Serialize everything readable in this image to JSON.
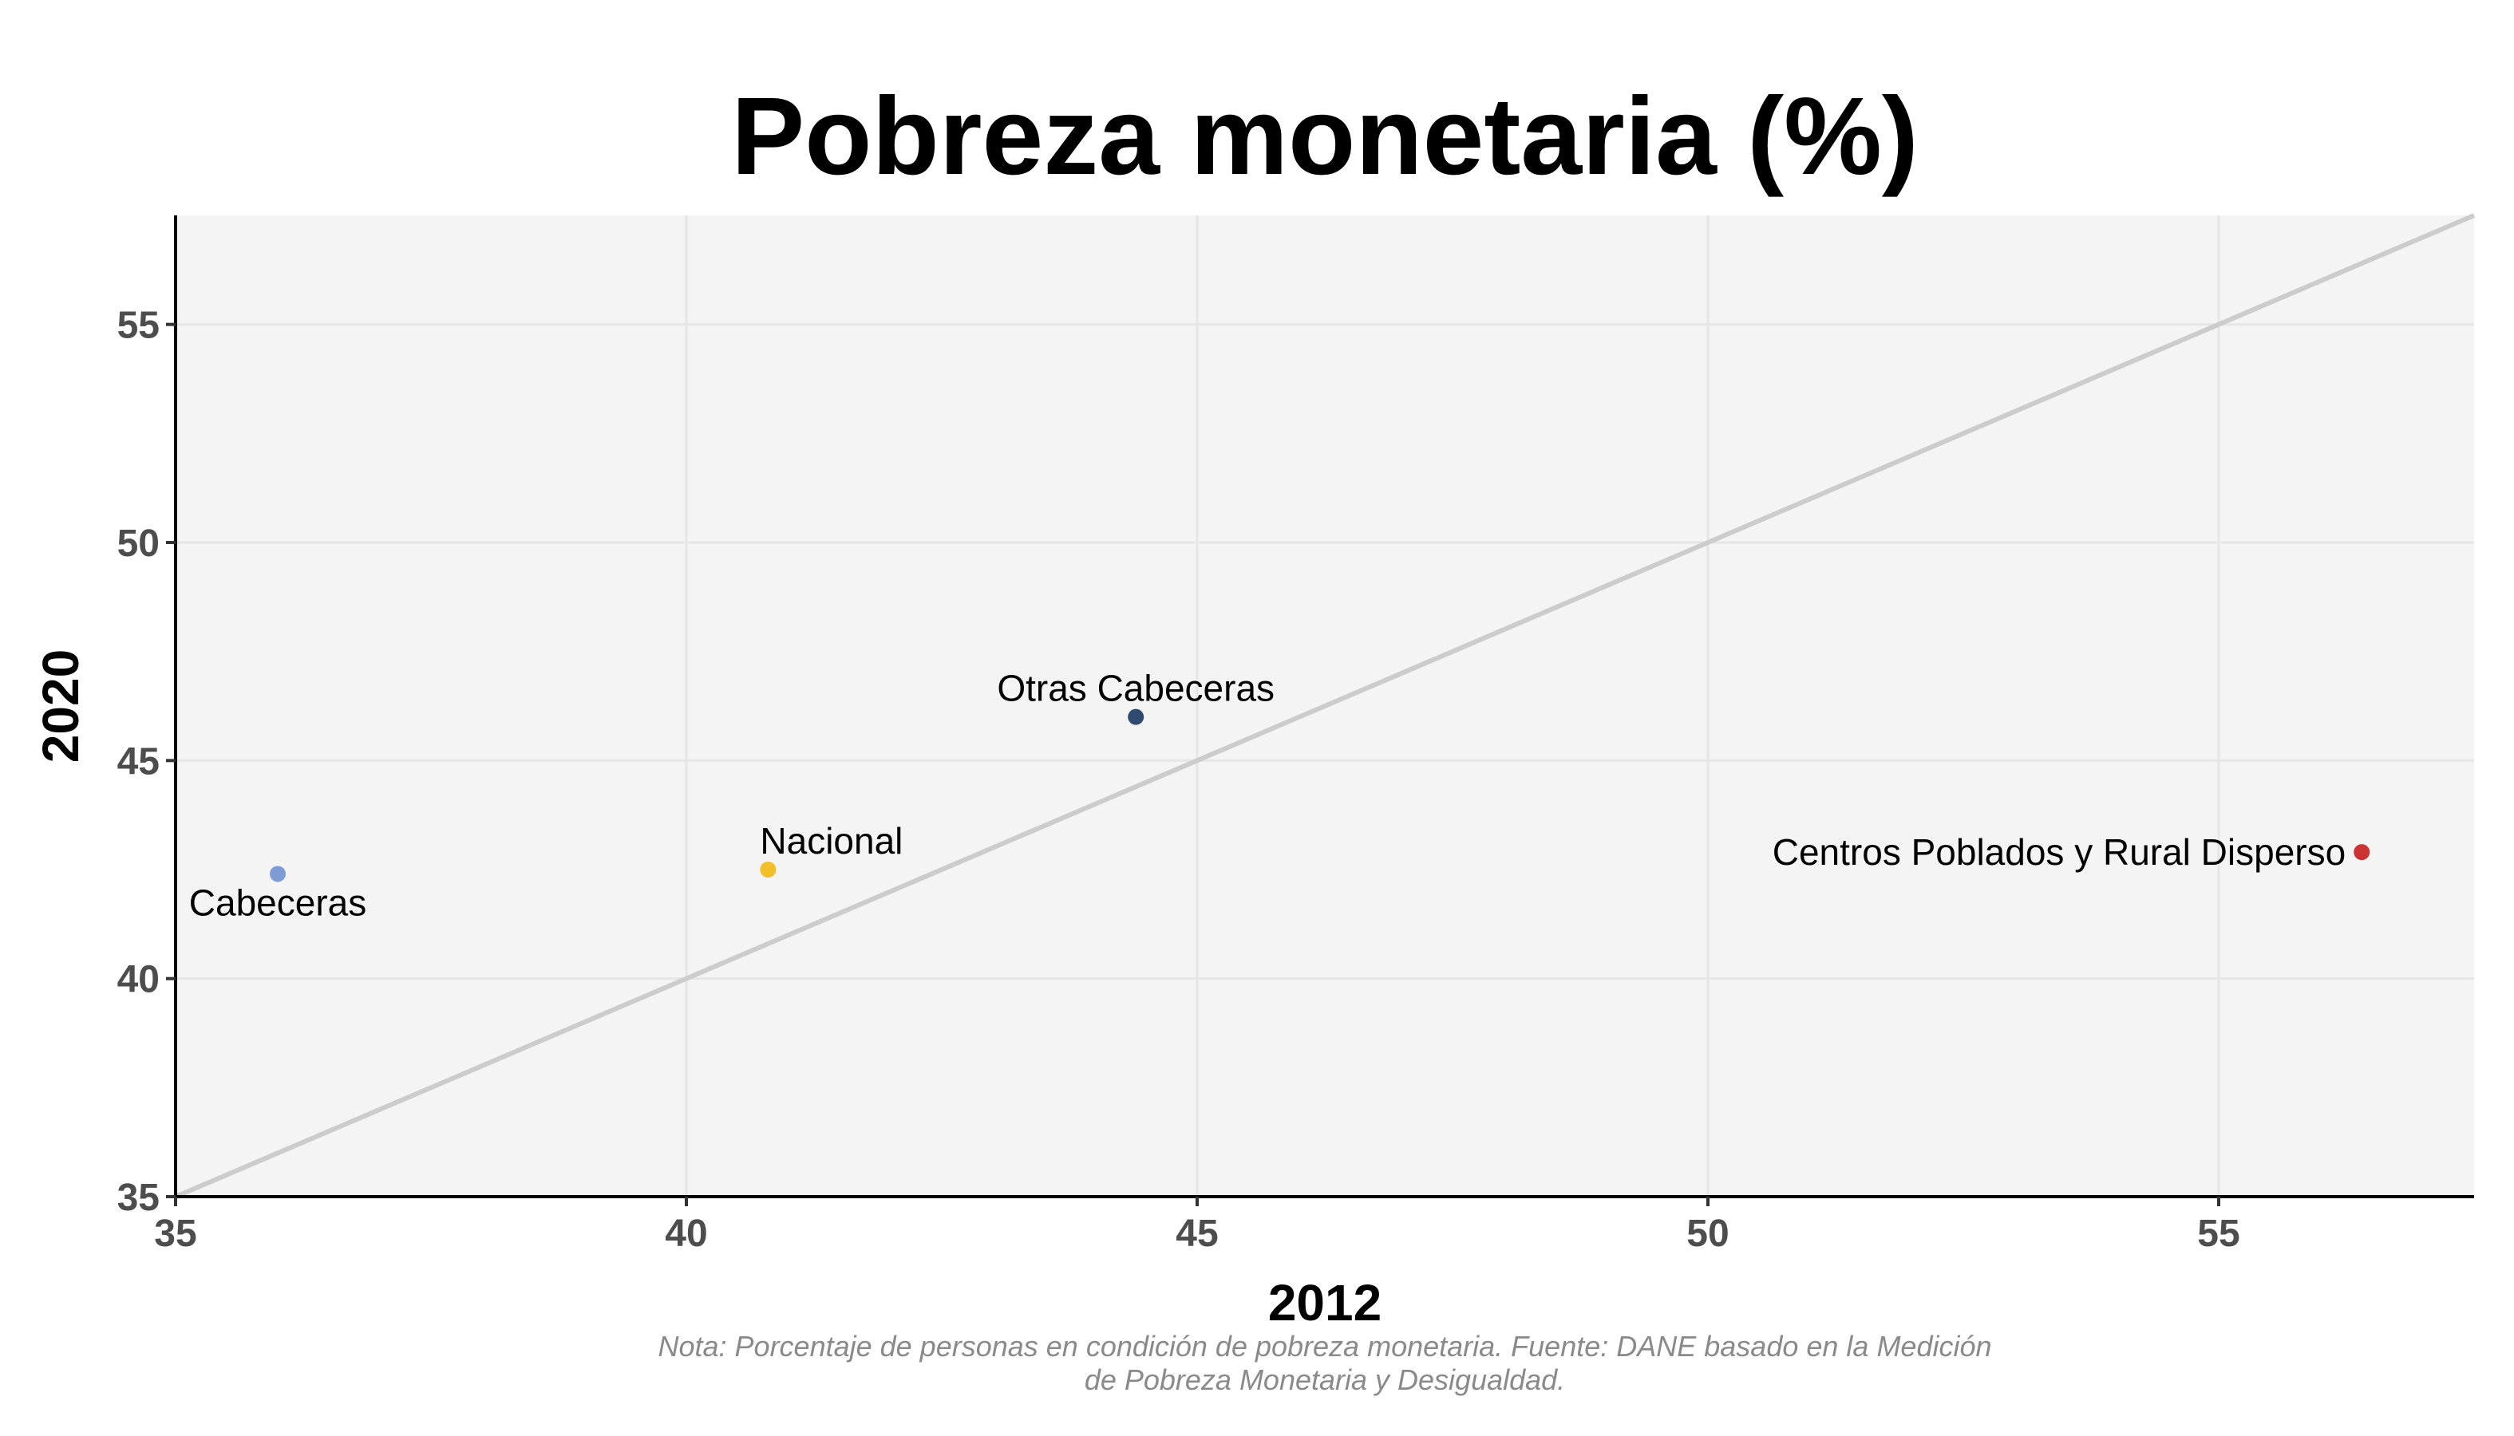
{
  "chart_data": {
    "type": "scatter",
    "title": "Pobreza monetaria (%)",
    "xlabel": "2012",
    "ylabel": "2020",
    "xlim": [
      35,
      57.5
    ],
    "ylim": [
      35,
      57.5
    ],
    "x_ticks": [
      35,
      40,
      45,
      50,
      55
    ],
    "y_ticks": [
      35,
      40,
      45,
      50,
      55
    ],
    "grid": true,
    "reference_line": "y = x",
    "points": [
      {
        "label": "Cabeceras",
        "x": 36.0,
        "y": 42.4,
        "color": "#7f9bd5",
        "label_position": "below"
      },
      {
        "label": "Nacional",
        "x": 40.8,
        "y": 42.5,
        "color": "#f0bf2a",
        "label_position": "above-right"
      },
      {
        "label": "Otras Cabeceras",
        "x": 44.4,
        "y": 46.0,
        "color": "#2f4a6e",
        "label_position": "above"
      },
      {
        "label": "Centros Poblados y Rural Disperso",
        "x": 56.4,
        "y": 42.9,
        "color": "#cc3333",
        "label_position": "left"
      }
    ],
    "note_lines": [
      "Nota: Porcentaje de personas en condición de pobreza monetaria. Fuente: DANE basado en la Medición",
      "de Pobreza Monetaria y Desigualdad."
    ]
  }
}
